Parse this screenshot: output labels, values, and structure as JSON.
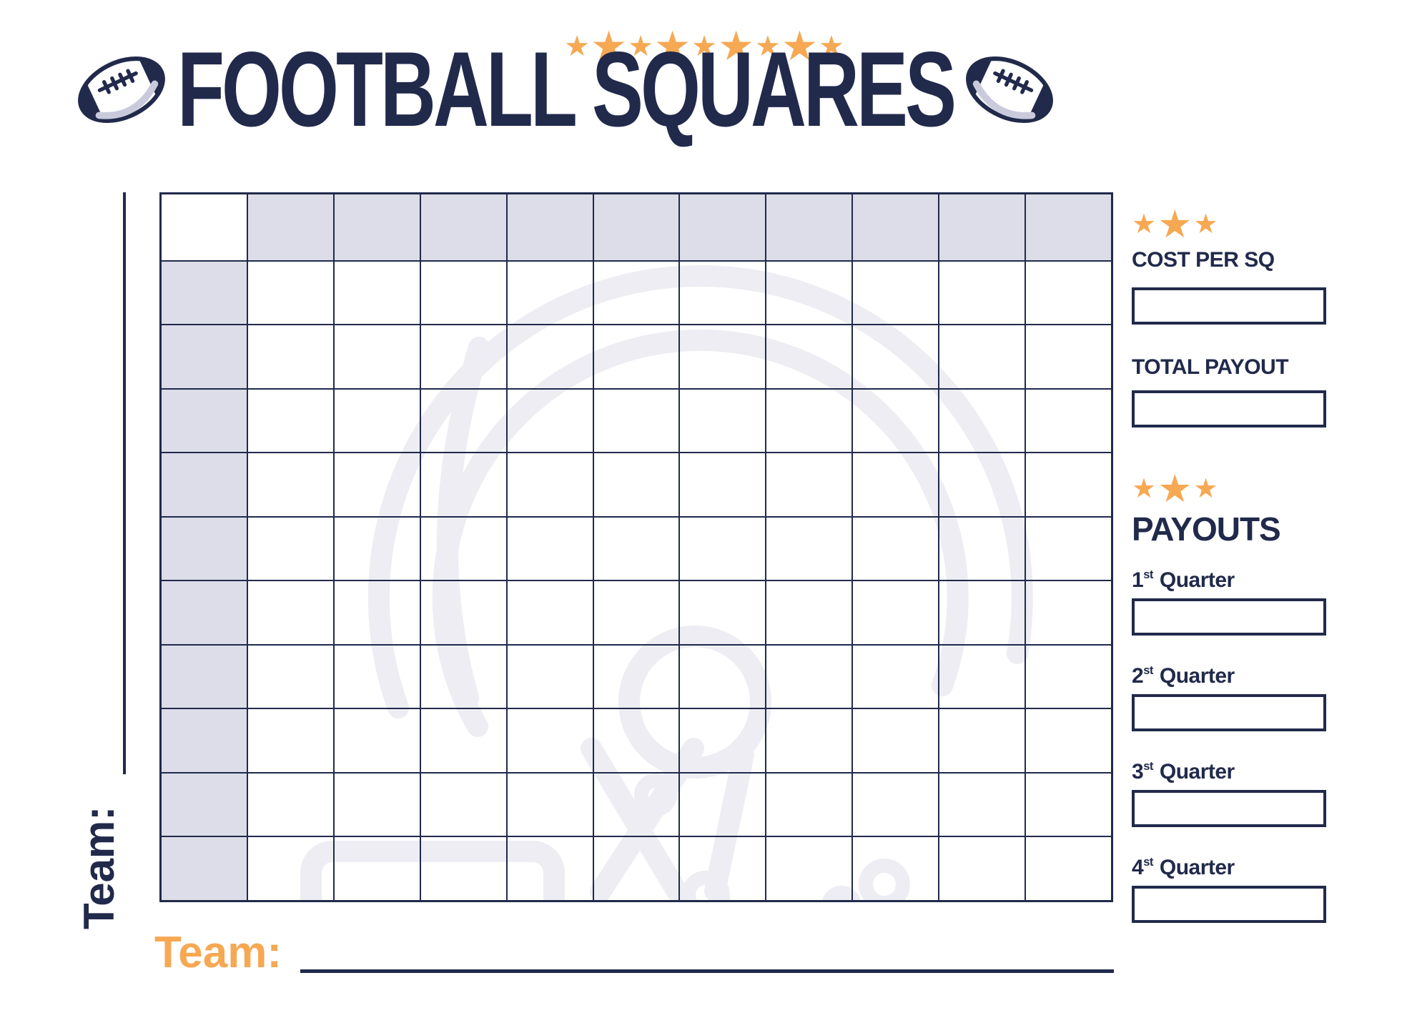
{
  "title": "FOOTBALL SQUARES",
  "colors": {
    "navy": "#212a4b",
    "orange": "#f6a853",
    "header_cell_gray": "#dcdde8",
    "watermark_gray": "#ededf3"
  },
  "icons": {
    "star": "★"
  },
  "header": {
    "star_count": 9
  },
  "grid": {
    "rows": 11,
    "cols": 11
  },
  "team_left": {
    "label": "Team:"
  },
  "team_bottom": {
    "label": "Team:"
  },
  "sidebar": {
    "star_count": 3,
    "cost": {
      "label": "COST PER SQ",
      "value": ""
    },
    "total": {
      "label": "TOTAL PAYOUT",
      "value": ""
    },
    "payouts": {
      "heading": "PAYOUTS",
      "quarters": [
        {
          "ordinal": "1",
          "suffix": "st",
          "word": "Quarter",
          "value": ""
        },
        {
          "ordinal": "2",
          "suffix": "st",
          "word": "Quarter",
          "value": ""
        },
        {
          "ordinal": "3",
          "suffix": "st",
          "word": "Quarter",
          "value": ""
        },
        {
          "ordinal": "4",
          "suffix": "st",
          "word": "Quarter",
          "value": ""
        }
      ]
    }
  }
}
